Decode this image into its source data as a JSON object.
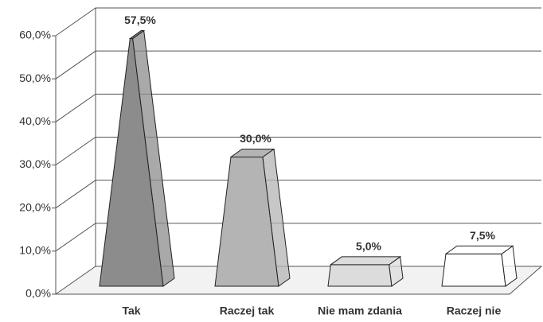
{
  "chart_data": {
    "type": "pyramid",
    "categories": [
      "Tak",
      "Raczej tak",
      "Nie mam zdania",
      "Raczej nie"
    ],
    "values": [
      57.5,
      30,
      5,
      7.5
    ],
    "value_labels": [
      "57,5%",
      "30,0%",
      "5,0%",
      "7,5%"
    ],
    "colors": [
      "#8c8c8c",
      "#b4b4b4",
      "#dcdcdc",
      "#ffffff"
    ],
    "ylim": [
      0,
      60
    ],
    "yticks": [
      {
        "value": 0,
        "label": "0,0%"
      },
      {
        "value": 10,
        "label": "10,0%"
      },
      {
        "value": 20,
        "label": "20,0%"
      },
      {
        "value": 30,
        "label": "30,0%"
      },
      {
        "value": 40,
        "label": "40,0%"
      },
      {
        "value": 50,
        "label": "50,0%"
      },
      {
        "value": 60,
        "label": "60,0%"
      }
    ],
    "grid": true
  }
}
